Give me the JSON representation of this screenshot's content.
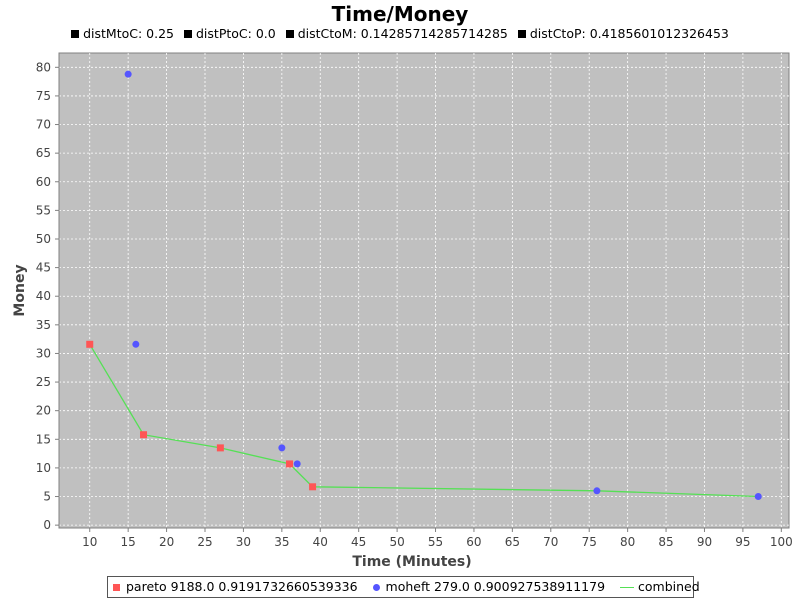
{
  "window": {
    "title": "Time/Money"
  },
  "subtitle": [
    {
      "label": "distMtoC: 0.25"
    },
    {
      "label": "distPtoC: 0.0"
    },
    {
      "label": "distCtoM: 0.14285714285714285"
    },
    {
      "label": "distCtoP: 0.4185601012326453"
    }
  ],
  "colors": {
    "plot_bg": "#c0c0c0",
    "pareto": "#ff5555",
    "moheft": "#5555ff",
    "combined": "#55e055",
    "grid": "#ffffff"
  },
  "chart_data": {
    "type": "scatter",
    "title": "Time/Money",
    "xlabel": "Time (Minutes)",
    "ylabel": "Money",
    "xlim": [
      6,
      101
    ],
    "ylim": [
      -0.5,
      82.5
    ],
    "xticks": [
      10,
      15,
      20,
      25,
      30,
      35,
      40,
      45,
      50,
      55,
      60,
      65,
      70,
      75,
      80,
      85,
      90,
      95,
      100
    ],
    "yticks": [
      0,
      5,
      10,
      15,
      20,
      25,
      30,
      35,
      40,
      45,
      50,
      55,
      60,
      65,
      70,
      75,
      80
    ],
    "grid": true,
    "legend_position": "bottom",
    "series": [
      {
        "name": "pareto 9188.0 0.9191732660539336",
        "marker": "square",
        "color": "#ff5555",
        "points": [
          [
            10,
            31.6
          ],
          [
            17,
            15.8
          ],
          [
            27,
            13.5
          ],
          [
            36,
            10.7
          ],
          [
            39,
            6.7
          ]
        ]
      },
      {
        "name": "moheft 279.0 0.900927538911179",
        "marker": "circle",
        "color": "#5555ff",
        "points": [
          [
            15,
            78.8
          ],
          [
            16,
            31.6
          ],
          [
            35,
            13.5
          ],
          [
            37,
            10.7
          ],
          [
            76,
            6.0
          ],
          [
            97,
            5.0
          ]
        ]
      },
      {
        "name": "combined",
        "marker": "line",
        "color": "#55e055",
        "points": [
          [
            10,
            31.6
          ],
          [
            17,
            15.8
          ],
          [
            27,
            13.5
          ],
          [
            36,
            10.7
          ],
          [
            39,
            6.7
          ],
          [
            76,
            6.0
          ],
          [
            97,
            5.0
          ]
        ]
      }
    ]
  }
}
